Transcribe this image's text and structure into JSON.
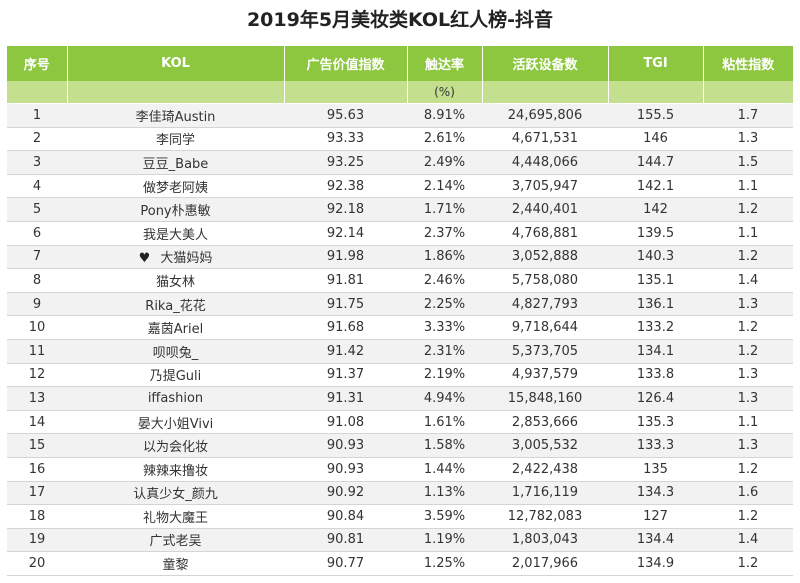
{
  "title": "2019年5月美妆类KOL红人榜-抖音",
  "columns": [
    "序号",
    "KOL",
    "广告价值指数",
    "触达率",
    "活跃设备数",
    "TGI",
    "粘性指数"
  ],
  "subheader": {
    "reach_unit": "(%)"
  },
  "rows": [
    {
      "rank": "1",
      "kol": "李佳琦Austin",
      "ad_index": "95.63",
      "reach": "8.91%",
      "devices": "24,695,806",
      "tgi": "155.5",
      "stickiness": "1.7"
    },
    {
      "rank": "2",
      "kol": "李同学",
      "ad_index": "93.33",
      "reach": "2.61%",
      "devices": "4,671,531",
      "tgi": "146",
      "stickiness": "1.3"
    },
    {
      "rank": "3",
      "kol": "豆豆_Babe",
      "ad_index": "93.25",
      "reach": "2.49%",
      "devices": "4,448,066",
      "tgi": "144.7",
      "stickiness": "1.5"
    },
    {
      "rank": "4",
      "kol": "做梦老阿姨",
      "ad_index": "92.38",
      "reach": "2.14%",
      "devices": "3,705,947",
      "tgi": "142.1",
      "stickiness": "1.1"
    },
    {
      "rank": "5",
      "kol": "Pony朴惠敏",
      "ad_index": "92.18",
      "reach": "1.71%",
      "devices": "2,440,401",
      "tgi": "142",
      "stickiness": "1.2"
    },
    {
      "rank": "6",
      "kol": "我是大美人",
      "ad_index": "92.14",
      "reach": "2.37%",
      "devices": "4,768,881",
      "tgi": "139.5",
      "stickiness": "1.1"
    },
    {
      "rank": "7",
      "kol": "大猫妈妈",
      "ad_index": "91.98",
      "reach": "1.86%",
      "devices": "3,052,888",
      "tgi": "140.3",
      "stickiness": "1.2",
      "heart": "♥"
    },
    {
      "rank": "8",
      "kol": "猫女林",
      "ad_index": "91.81",
      "reach": "2.46%",
      "devices": "5,758,080",
      "tgi": "135.1",
      "stickiness": "1.4"
    },
    {
      "rank": "9",
      "kol": "Rika_花花",
      "ad_index": "91.75",
      "reach": "2.25%",
      "devices": "4,827,793",
      "tgi": "136.1",
      "stickiness": "1.3"
    },
    {
      "rank": "10",
      "kol": "嘉茵Ariel",
      "ad_index": "91.68",
      "reach": "3.33%",
      "devices": "9,718,644",
      "tgi": "133.2",
      "stickiness": "1.2"
    },
    {
      "rank": "11",
      "kol": "呗呗兔_",
      "ad_index": "91.42",
      "reach": "2.31%",
      "devices": "5,373,705",
      "tgi": "134.1",
      "stickiness": "1.2"
    },
    {
      "rank": "12",
      "kol": "乃提Guli",
      "ad_index": "91.37",
      "reach": "2.19%",
      "devices": "4,937,579",
      "tgi": "133.8",
      "stickiness": "1.3"
    },
    {
      "rank": "13",
      "kol": "iffashion",
      "ad_index": "91.31",
      "reach": "4.94%",
      "devices": "15,848,160",
      "tgi": "126.4",
      "stickiness": "1.3"
    },
    {
      "rank": "14",
      "kol": "晏大小姐Vivi",
      "ad_index": "91.08",
      "reach": "1.61%",
      "devices": "2,853,666",
      "tgi": "135.3",
      "stickiness": "1.1"
    },
    {
      "rank": "15",
      "kol": "以为会化妆",
      "ad_index": "90.93",
      "reach": "1.58%",
      "devices": "3,005,532",
      "tgi": "133.3",
      "stickiness": "1.3"
    },
    {
      "rank": "16",
      "kol": "辣辣来撸妆",
      "ad_index": "90.93",
      "reach": "1.44%",
      "devices": "2,422,438",
      "tgi": "135",
      "stickiness": "1.2"
    },
    {
      "rank": "17",
      "kol": "认真少女_颜九",
      "ad_index": "90.92",
      "reach": "1.13%",
      "devices": "1,716,119",
      "tgi": "134.3",
      "stickiness": "1.6"
    },
    {
      "rank": "18",
      "kol": "礼物大魔王",
      "ad_index": "90.84",
      "reach": "3.59%",
      "devices": "12,782,083",
      "tgi": "127",
      "stickiness": "1.2"
    },
    {
      "rank": "19",
      "kol": "广式老吴",
      "ad_index": "90.81",
      "reach": "1.19%",
      "devices": "1,803,043",
      "tgi": "134.4",
      "stickiness": "1.4"
    },
    {
      "rank": "20",
      "kol": "童黎",
      "ad_index": "90.77",
      "reach": "1.25%",
      "devices": "2,017,966",
      "tgi": "134.9",
      "stickiness": "1.2"
    }
  ]
}
